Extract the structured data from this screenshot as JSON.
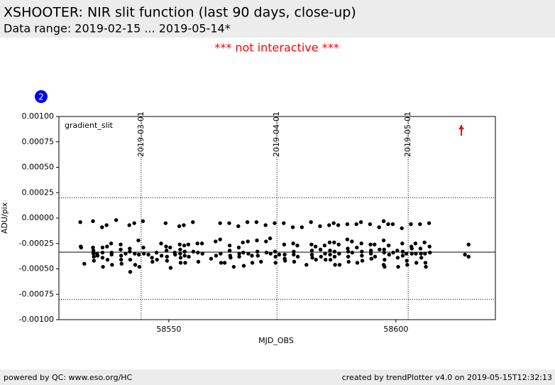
{
  "header": {
    "title": "XSHOOTER: NIR slit function (last 90 days, close-up)",
    "subtitle": "Data range: 2019-02-15 ... 2019-05-14*",
    "notice": "*** not interactive ***"
  },
  "badge": "2",
  "footer": {
    "left": "powered by QC: www.eso.org/HC",
    "right": "created by trendPlotter v4.0 on 2019-05-15T12:32:13"
  },
  "chart_data": {
    "type": "scatter",
    "annotation": "gradient_slit",
    "x_label": "MJD_OBS",
    "y_label": "ADU/pix",
    "color": "#000000",
    "xlim": [
      58525.8,
      58621.9
    ],
    "ylim": [
      -0.001,
      0.001
    ],
    "xticks": [
      58550,
      58600
    ],
    "yticks": [
      {
        "value": 0.001,
        "label": "0.00100"
      },
      {
        "value": 0.00075,
        "label": "0.00075"
      },
      {
        "value": 0.0005,
        "label": "0.00050"
      },
      {
        "value": 0.00025,
        "label": "0.00025"
      },
      {
        "value": 0,
        "label": "0.00000"
      },
      {
        "value": -0.00025,
        "label": "-0.00025"
      },
      {
        "value": -0.0005,
        "label": "-0.00050"
      },
      {
        "value": -0.00075,
        "label": "-0.00075"
      },
      {
        "value": -0.001,
        "label": "-0.00100"
      }
    ],
    "date_markers": [
      {
        "x": 58543.9,
        "label": "2019-03-01"
      },
      {
        "x": 58573.8,
        "label": "2019-04-01"
      },
      {
        "x": 58602.7,
        "label": "2019-05-01"
      }
    ],
    "hlines": [
      {
        "y": -0.000336,
        "style": "solid"
      },
      {
        "y": 0.0002,
        "style": "dotted"
      },
      {
        "y": -0.0008,
        "style": "dotted"
      }
    ],
    "outliers": [
      {
        "x": 58614.4,
        "direction": "up",
        "color": "#ff0000"
      }
    ],
    "x": [
      58530.5,
      58530.6,
      58530.7,
      58531.4,
      58533.3,
      58533.3,
      58533.4,
      58533.4,
      58533.5,
      58533.5,
      58534.2,
      58534.3,
      58535.3,
      58535.4,
      58535.4,
      58535.4,
      58535.5,
      58536.3,
      58536.4,
      58536.5,
      58537.3,
      58537.4,
      58537.4,
      58537.5,
      58538.4,
      58539.4,
      58539.4,
      58539.5,
      58539.5,
      58539.6,
      58540.5,
      58541.3,
      58541.4,
      58541.4,
      58541.5,
      58541.5,
      58542.4,
      58542.5,
      58542.6,
      58543.3,
      58543.4,
      58543.5,
      58544.3,
      58544.4,
      58544.5,
      58545.5,
      58546.3,
      58546.4,
      58547.3,
      58547.4,
      58548.3,
      58548.4,
      58549.3,
      58549.4,
      58549.5,
      58549.6,
      58549.6,
      58550.3,
      58550.4,
      58551.3,
      58551.4,
      58552.3,
      58552.4,
      58552.5,
      58552.5,
      58552.6,
      58552.6,
      58553.3,
      58553.4,
      58553.5,
      58553.5,
      58553.6,
      58554.3,
      58554.4,
      58555.3,
      58555.4,
      58556.3,
      58556.4,
      58556.5,
      58557.3,
      58557.4,
      58559.3,
      58560.3,
      58560.4,
      58561.3,
      58561.3,
      58561.4,
      58561.5,
      58562.3,
      58563.3,
      58563.4,
      58563.4,
      58563.5,
      58563.6,
      58564.3,
      58565.3,
      58565.4,
      58565.5,
      58565.5,
      58566.3,
      58566.4,
      58566.5,
      58567.3,
      58567.4,
      58567.5,
      58568.3,
      58568.4,
      58569.3,
      58569.4,
      58569.5,
      58569.6,
      58570.3,
      58571.3,
      58571.4,
      58571.5,
      58572.3,
      58572.4,
      58573.3,
      58573.4,
      58573.5,
      58573.5,
      58574.3,
      58575.3,
      58575.4,
      58575.5,
      58575.5,
      58575.6,
      58577.3,
      58577.4,
      58577.5,
      58577.5,
      58577.6,
      58578.3,
      58578.4,
      58579.3,
      58580.3,
      58581.3,
      58581.4,
      58581.5,
      58581.5,
      58581.6,
      58582.3,
      58582.4,
      58583.3,
      58583.4,
      58583.5,
      58584.3,
      58584.4,
      58584.5,
      58585.3,
      58585.4,
      58585.5,
      58585.5,
      58585.6,
      58586.3,
      58586.4,
      58586.5,
      58586.5,
      58586.6,
      58587.3,
      58587.4,
      58587.5,
      58587.6,
      58589.3,
      58589.3,
      58589.4,
      58589.5,
      58589.5,
      58589.6,
      58590.3,
      58590.4,
      58591.3,
      58591.4,
      58591.5,
      58592.3,
      58592.4,
      58592.5,
      58592.5,
      58592.6,
      58594.3,
      58594.4,
      58594.5,
      58594.5,
      58594.6,
      58595.3,
      58595.4,
      58596.3,
      58596.4,
      58597.3,
      58597.3,
      58597.3,
      58597.4,
      58597.4,
      58597.5,
      58597.5,
      58598.3,
      58598.4,
      58598.5,
      58599.3,
      58599.4,
      58600.3,
      58600.4,
      58600.5,
      58601.3,
      58601.4,
      58601.5,
      58601.5,
      58602.3,
      58602.4,
      58602.5,
      58603.3,
      58603.4,
      58603.5,
      58603.5,
      58604.3,
      58604.4,
      58604.5,
      58605.3,
      58605.4,
      58605.5,
      58605.6,
      58606.3,
      58606.4,
      58606.5,
      58606.6,
      58607.3,
      58607.4,
      58607.5,
      58615.2,
      58616.0,
      58616.0
    ],
    "values": [
      -4e-05,
      -0.00028,
      -0.00029,
      -0.00045,
      -3e-05,
      -0.00029,
      -0.00032,
      -0.00035,
      -0.00038,
      -0.00042,
      -0.00035,
      -0.00037,
      -9e-05,
      -0.00029,
      -0.00034,
      -0.00039,
      -0.00048,
      -7e-05,
      -0.00028,
      -0.00041,
      -0.00025,
      -0.00034,
      -0.00036,
      -0.00046,
      -2e-05,
      -0.00026,
      -0.00031,
      -0.00037,
      -0.00041,
      -0.00045,
      -0.00035,
      -7e-05,
      -0.0003,
      -0.00033,
      -0.00041,
      -0.00053,
      -5e-05,
      -0.00035,
      -0.00046,
      -0.00022,
      -0.00036,
      -0.00048,
      -3e-05,
      -0.00029,
      -0.00035,
      -0.00036,
      -0.00039,
      -0.00043,
      -0.00034,
      -0.00041,
      -0.00025,
      -0.00037,
      -5e-05,
      -0.00028,
      -0.00032,
      -0.00038,
      -0.00042,
      -0.00029,
      -0.00049,
      -0.00034,
      -0.00036,
      -8e-05,
      -0.00026,
      -0.00031,
      -0.00035,
      -0.00039,
      -0.00044,
      -7e-05,
      -0.00027,
      -0.00033,
      -0.00037,
      -0.00044,
      -0.00026,
      -0.00038,
      -4e-05,
      -0.00033,
      -0.00025,
      -0.00034,
      -0.00043,
      -0.00025,
      -0.00035,
      -0.0004,
      -0.00023,
      -0.00037,
      -5e-05,
      -0.00021,
      -0.00035,
      -0.00044,
      -0.00044,
      -5e-05,
      -0.00027,
      -0.00032,
      -0.00037,
      -0.00039,
      -0.00048,
      -8e-05,
      -0.00029,
      -0.00035,
      -0.00038,
      -0.00024,
      -0.00034,
      -0.00047,
      -4e-05,
      -0.00023,
      -0.00035,
      -0.00037,
      -0.00044,
      -4e-05,
      -0.00022,
      -0.00033,
      -0.00037,
      -0.00043,
      -7e-05,
      -0.00023,
      -0.00034,
      -0.0002,
      -0.00035,
      -5e-05,
      -0.00033,
      -0.00038,
      -0.00044,
      -0.00036,
      -5e-05,
      -0.00026,
      -0.00036,
      -0.0004,
      -0.00042,
      -9e-05,
      -0.00025,
      -0.00033,
      -0.00036,
      -0.00043,
      -0.00027,
      -0.00038,
      -9e-05,
      -0.00046,
      -4e-05,
      -0.00026,
      -0.00032,
      -0.00036,
      -0.00039,
      -0.00028,
      -0.00041,
      -8e-05,
      -0.00031,
      -0.00038,
      -0.00027,
      -0.00035,
      -0.00041,
      -7e-05,
      -0.00024,
      -0.00032,
      -0.00036,
      -0.00041,
      -5e-05,
      -0.00024,
      -0.00033,
      -0.00038,
      -0.00046,
      -7e-05,
      -0.00026,
      -0.00035,
      -0.00046,
      -6e-05,
      -0.00021,
      -0.0003,
      -0.00033,
      -0.00038,
      -0.00043,
      -0.00023,
      -0.00034,
      -6e-05,
      -0.00029,
      -0.00044,
      -4e-05,
      -0.00025,
      -0.00033,
      -0.00037,
      -0.00042,
      -6e-05,
      -0.00026,
      -0.00032,
      -0.00035,
      -0.0004,
      -0.00026,
      -0.00038,
      -9e-05,
      -0.00031,
      -0.00046,
      -3e-05,
      -0.00022,
      -0.00031,
      -0.00034,
      -0.00041,
      -0.00048,
      -6e-05,
      -0.00027,
      -0.00036,
      -6e-05,
      -0.00034,
      -0.00032,
      -0.00039,
      -0.00048,
      -0.0001,
      -0.00025,
      -0.00033,
      -0.00037,
      -0.00035,
      -0.00042,
      -0.00046,
      -6e-05,
      -0.00028,
      -0.0003,
      -0.00035,
      -0.00025,
      -0.00035,
      -0.00044,
      -6e-05,
      -0.0003,
      -0.00035,
      -0.00039,
      -0.00024,
      -0.00035,
      -0.00044,
      -0.00048,
      -5e-05,
      -0.00028,
      -0.00034,
      -0.00036,
      -0.00026,
      -0.00038
    ]
  }
}
